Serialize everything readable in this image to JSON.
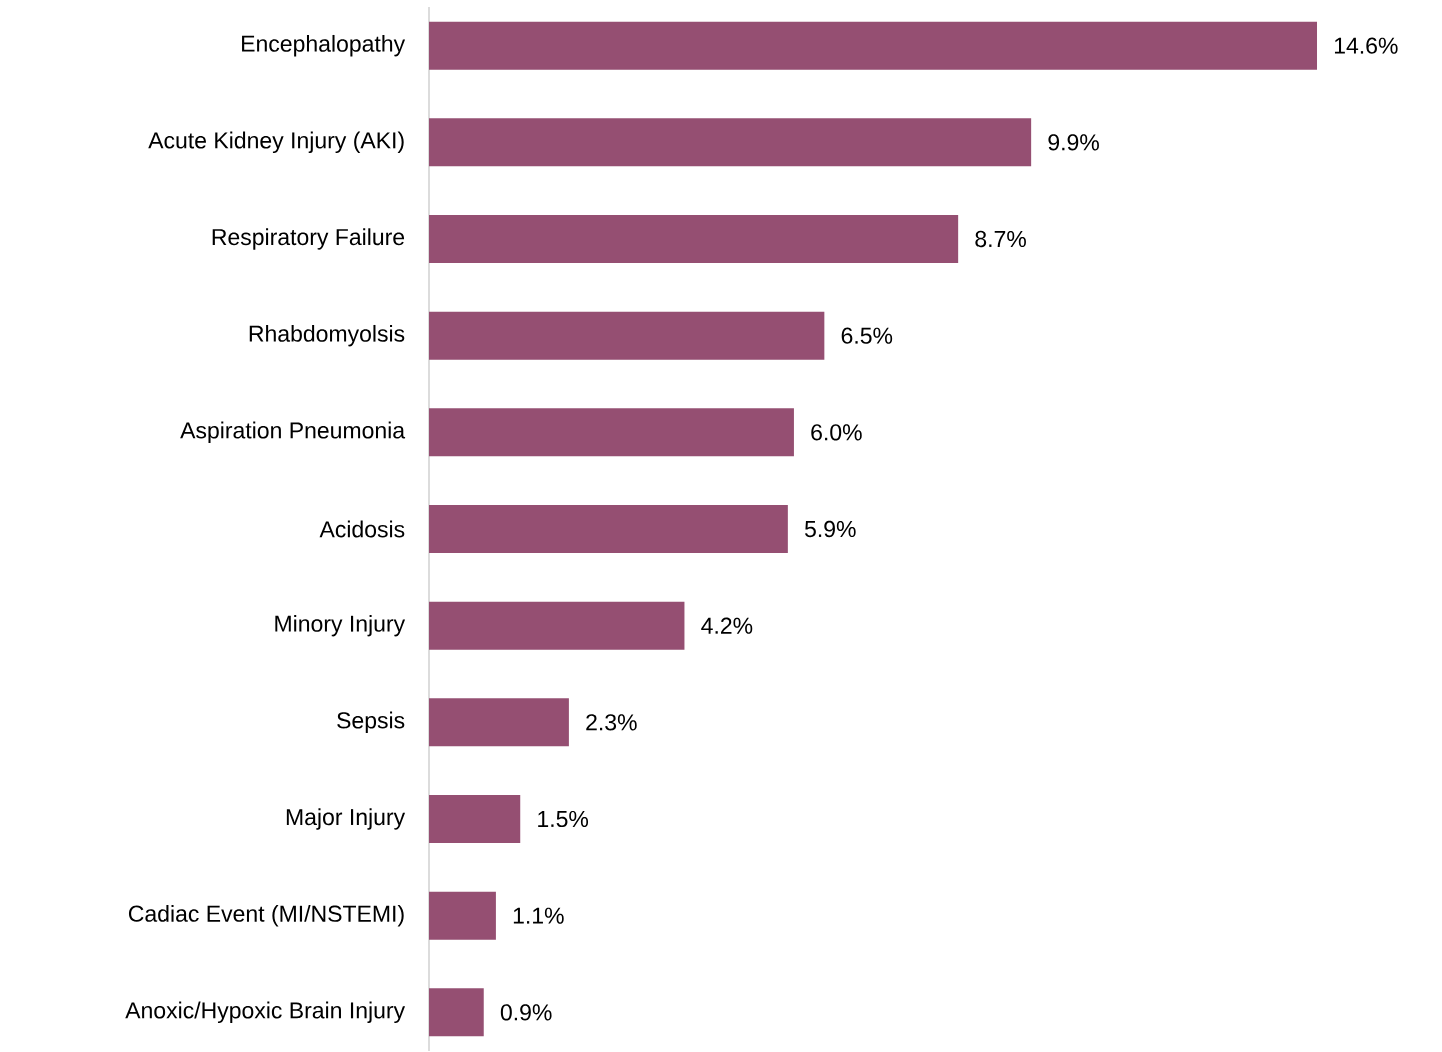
{
  "chart_data": {
    "type": "bar",
    "orientation": "horizontal",
    "categories": [
      "Encephalopathy",
      "Acute Kidney Injury (AKI)",
      "Respiratory Failure",
      "Rhabdomyolsis",
      "Aspiration Pneumonia",
      "Acidosis",
      "Minory Injury",
      "Sepsis",
      "Major Injury",
      "Cadiac Event (MI/NSTEMI)",
      "Anoxic/Hypoxic Brain Injury"
    ],
    "values": [
      14.6,
      9.9,
      8.7,
      6.5,
      6.0,
      5.9,
      4.2,
      2.3,
      1.5,
      1.1,
      0.9
    ],
    "value_labels": [
      "14.6%",
      "9.9%",
      "8.7%",
      "6.5%",
      "6.0%",
      "5.9%",
      "4.2%",
      "2.3%",
      "1.5%",
      "1.1%",
      "0.9%"
    ],
    "color": "#954f72"
  }
}
